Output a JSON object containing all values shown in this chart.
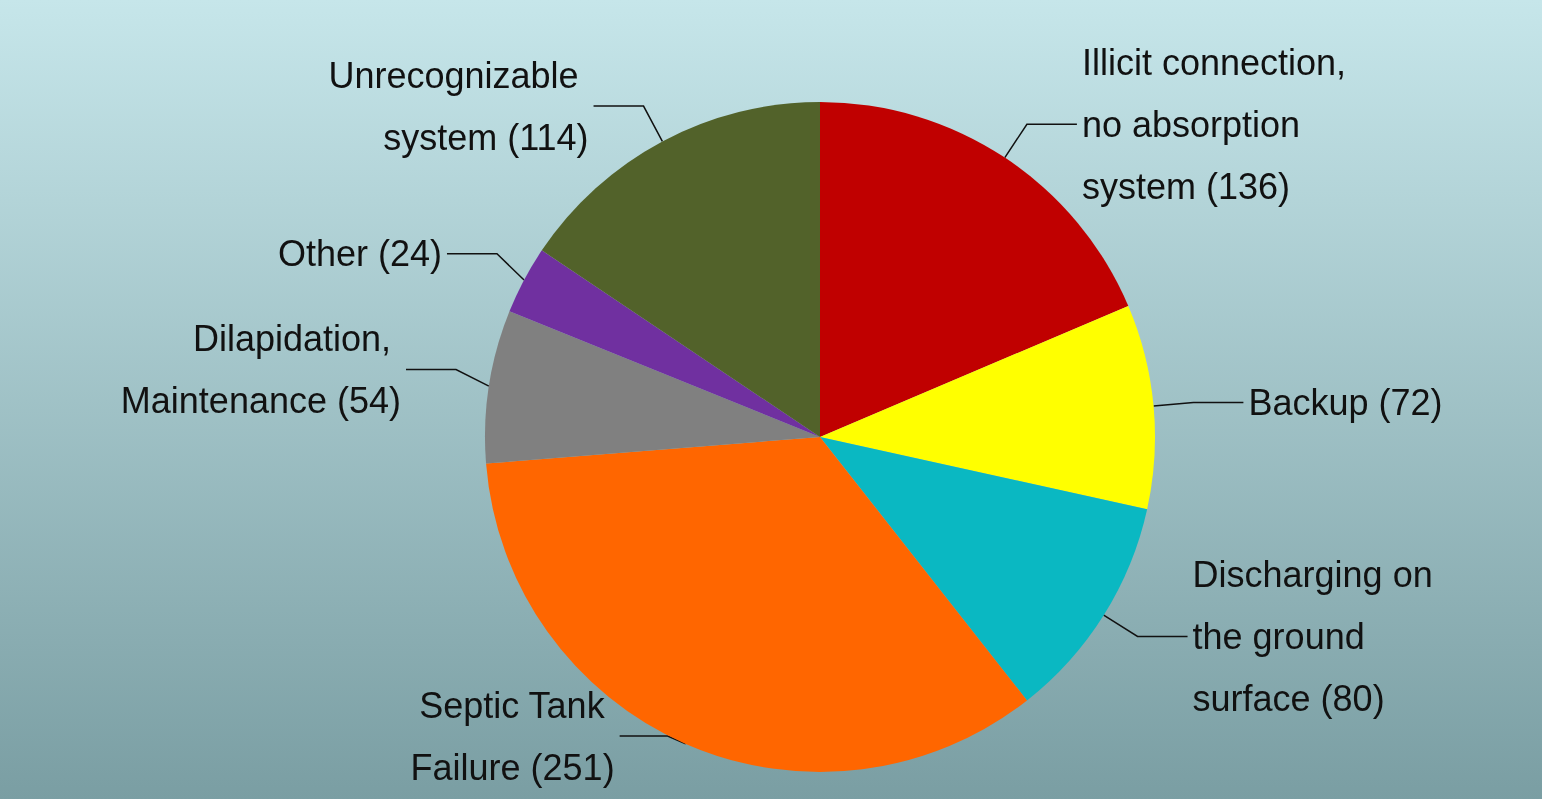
{
  "chart_data": {
    "type": "pie",
    "categories": [
      "Illicit connection, no absorption system",
      "Backup",
      "Discharging on the ground surface",
      "Septic Tank Failure",
      "Dilapidation, Maintenance",
      "Other",
      "Unrecognizable system"
    ],
    "values": [
      136,
      72,
      80,
      251,
      54,
      24,
      114
    ],
    "colors": [
      "#c00000",
      "#ffff00",
      "#0ab8c2",
      "#ff6600",
      "#808080",
      "#7030a0",
      "#52622a"
    ],
    "value_labels": [
      "(136)",
      "(72)",
      "(80)",
      "(251)",
      "(54)",
      "(24)",
      "(114)"
    ],
    "legend": false
  }
}
